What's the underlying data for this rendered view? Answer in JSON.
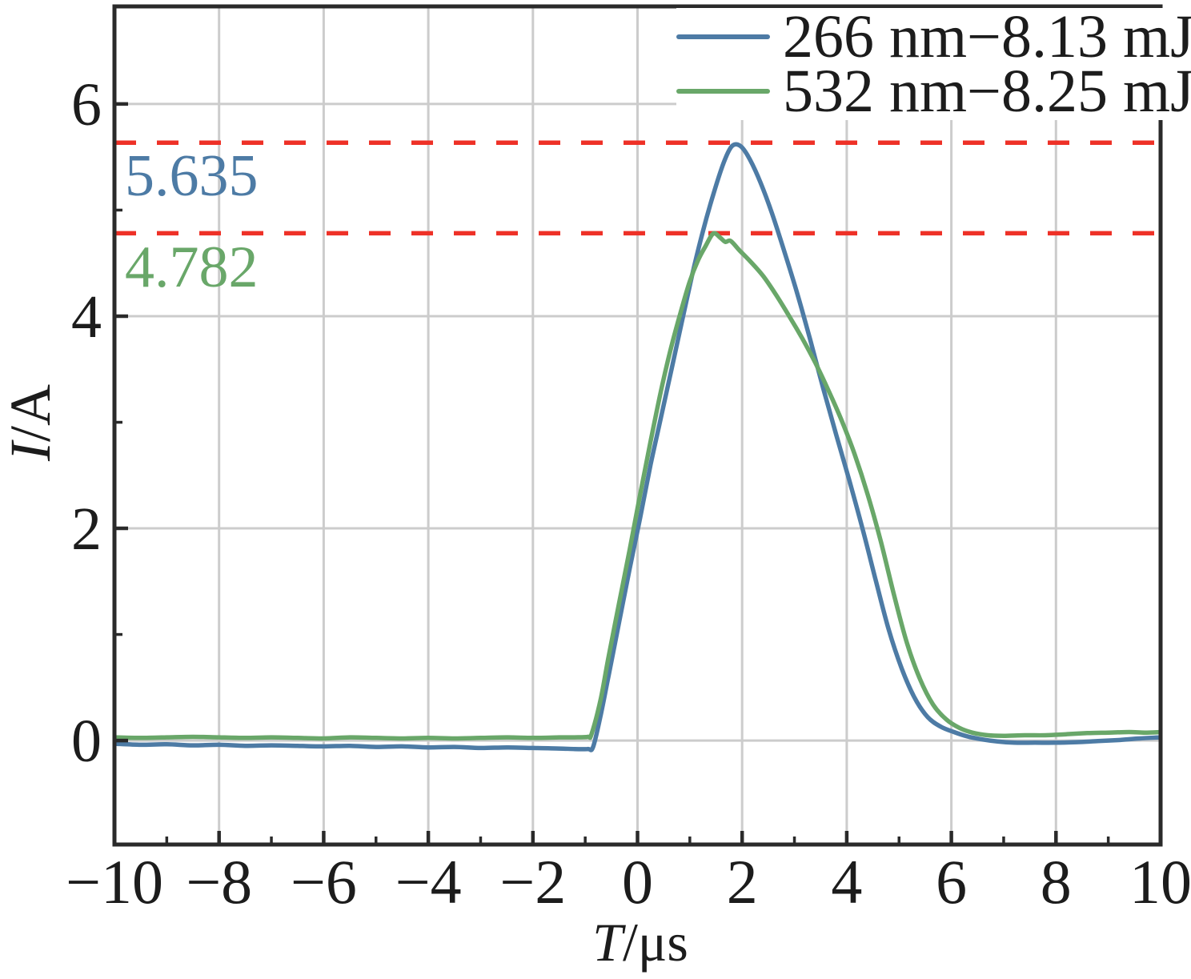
{
  "chart_data": {
    "type": "line",
    "title": "",
    "xlabel": {
      "variable": "T",
      "unit": "/μs"
    },
    "ylabel": {
      "variable": "I",
      "unit": "/A"
    },
    "xlim": [
      -10,
      10
    ],
    "ylim": [
      -0.98,
      6.92
    ],
    "x_major_ticks": [
      -10,
      -8,
      -6,
      -4,
      -2,
      0,
      2,
      4,
      6,
      8,
      10
    ],
    "x_minor_ticks": [
      -9,
      -7,
      -5,
      -3,
      -1,
      1,
      3,
      5,
      7,
      9
    ],
    "x_tick_labels": [
      "−10",
      "−8",
      "−6",
      "−4",
      "−2",
      "0",
      "2",
      "4",
      "6",
      "8",
      "10"
    ],
    "y_major_ticks": [
      0,
      2,
      4,
      6
    ],
    "y_minor_ticks": [
      1,
      3,
      5
    ],
    "y_tick_labels": [
      "0",
      "2",
      "4",
      "6"
    ],
    "grid_x_values": [
      -8,
      -6,
      -4,
      -2,
      0,
      2,
      4,
      6,
      8
    ],
    "grid_y_values": [
      0,
      2,
      4,
      6
    ],
    "grid_on": true,
    "grid_color": "#cccccc",
    "axis_color": "#2a2a2a",
    "text_color": "#1c1c1c",
    "background_color": "#ffffff",
    "legend_position": "top-right",
    "series": [
      {
        "name": "266 nm−8.13 mJ",
        "color": "#4d7ba5",
        "peak_value": 5.635,
        "points": [
          [
            -10,
            -0.03
          ],
          [
            -9.5,
            -0.04
          ],
          [
            -9,
            -0.035
          ],
          [
            -8.5,
            -0.045
          ],
          [
            -8,
            -0.04
          ],
          [
            -7.5,
            -0.05
          ],
          [
            -7,
            -0.045
          ],
          [
            -6.5,
            -0.05
          ],
          [
            -6,
            -0.055
          ],
          [
            -5.5,
            -0.05
          ],
          [
            -5,
            -0.06
          ],
          [
            -4.5,
            -0.055
          ],
          [
            -4,
            -0.065
          ],
          [
            -3.5,
            -0.06
          ],
          [
            -3,
            -0.07
          ],
          [
            -2.5,
            -0.065
          ],
          [
            -2,
            -0.07
          ],
          [
            -1.5,
            -0.075
          ],
          [
            -1.2,
            -0.08
          ],
          [
            -0.95,
            -0.08
          ],
          [
            -0.85,
            -0.06
          ],
          [
            -0.7,
            0.25
          ],
          [
            -0.55,
            0.62
          ],
          [
            -0.35,
            1.12
          ],
          [
            -0.15,
            1.62
          ],
          [
            0.05,
            2.1
          ],
          [
            0.25,
            2.6
          ],
          [
            0.45,
            3.05
          ],
          [
            0.65,
            3.5
          ],
          [
            0.85,
            3.95
          ],
          [
            1.05,
            4.4
          ],
          [
            1.25,
            4.8
          ],
          [
            1.45,
            5.15
          ],
          [
            1.65,
            5.45
          ],
          [
            1.8,
            5.6
          ],
          [
            1.95,
            5.61
          ],
          [
            2.1,
            5.52
          ],
          [
            2.3,
            5.32
          ],
          [
            2.55,
            5.0
          ],
          [
            2.8,
            4.62
          ],
          [
            3.05,
            4.22
          ],
          [
            3.3,
            3.78
          ],
          [
            3.55,
            3.32
          ],
          [
            3.8,
            2.88
          ],
          [
            4.05,
            2.45
          ],
          [
            4.3,
            2.0
          ],
          [
            4.55,
            1.52
          ],
          [
            4.8,
            1.05
          ],
          [
            5.05,
            0.68
          ],
          [
            5.3,
            0.4
          ],
          [
            5.55,
            0.22
          ],
          [
            5.8,
            0.13
          ],
          [
            6.05,
            0.08
          ],
          [
            6.3,
            0.04
          ],
          [
            6.6,
            0.01
          ],
          [
            6.9,
            -0.01
          ],
          [
            7.2,
            -0.02
          ],
          [
            7.6,
            -0.02
          ],
          [
            8,
            -0.02
          ],
          [
            8.4,
            -0.015
          ],
          [
            8.8,
            -0.005
          ],
          [
            9.2,
            0.005
          ],
          [
            9.6,
            0.02
          ],
          [
            10,
            0.03
          ]
        ]
      },
      {
        "name": "532 nm−8.25 mJ",
        "color": "#69a769",
        "peak_value": 4.782,
        "points": [
          [
            -10,
            0.03
          ],
          [
            -9.5,
            0.025
          ],
          [
            -9,
            0.03
          ],
          [
            -8.5,
            0.035
          ],
          [
            -8,
            0.03
          ],
          [
            -7.5,
            0.025
          ],
          [
            -7,
            0.03
          ],
          [
            -6.5,
            0.025
          ],
          [
            -6,
            0.02
          ],
          [
            -5.5,
            0.03
          ],
          [
            -5,
            0.025
          ],
          [
            -4.5,
            0.02
          ],
          [
            -4,
            0.025
          ],
          [
            -3.5,
            0.02
          ],
          [
            -3,
            0.025
          ],
          [
            -2.5,
            0.03
          ],
          [
            -2,
            0.025
          ],
          [
            -1.5,
            0.03
          ],
          [
            -1.2,
            0.03
          ],
          [
            -0.95,
            0.035
          ],
          [
            -0.88,
            0.06
          ],
          [
            -0.7,
            0.4
          ],
          [
            -0.55,
            0.8
          ],
          [
            -0.35,
            1.3
          ],
          [
            -0.15,
            1.8
          ],
          [
            0.05,
            2.32
          ],
          [
            0.25,
            2.82
          ],
          [
            0.45,
            3.3
          ],
          [
            0.65,
            3.72
          ],
          [
            0.85,
            4.08
          ],
          [
            1.0,
            4.33
          ],
          [
            1.15,
            4.52
          ],
          [
            1.3,
            4.66
          ],
          [
            1.45,
            4.78
          ],
          [
            1.58,
            4.74
          ],
          [
            1.68,
            4.7
          ],
          [
            1.78,
            4.71
          ],
          [
            1.95,
            4.62
          ],
          [
            2.15,
            4.52
          ],
          [
            2.4,
            4.38
          ],
          [
            2.65,
            4.2
          ],
          [
            2.9,
            4.0
          ],
          [
            3.15,
            3.79
          ],
          [
            3.4,
            3.56
          ],
          [
            3.65,
            3.3
          ],
          [
            3.9,
            3.02
          ],
          [
            4.15,
            2.7
          ],
          [
            4.4,
            2.32
          ],
          [
            4.65,
            1.88
          ],
          [
            4.9,
            1.38
          ],
          [
            5.15,
            0.92
          ],
          [
            5.4,
            0.58
          ],
          [
            5.65,
            0.34
          ],
          [
            5.9,
            0.2
          ],
          [
            6.15,
            0.12
          ],
          [
            6.4,
            0.075
          ],
          [
            6.7,
            0.05
          ],
          [
            7,
            0.045
          ],
          [
            7.4,
            0.05
          ],
          [
            7.8,
            0.05
          ],
          [
            8.2,
            0.06
          ],
          [
            8.6,
            0.07
          ],
          [
            9,
            0.075
          ],
          [
            9.4,
            0.08
          ],
          [
            9.7,
            0.075
          ],
          [
            10,
            0.08
          ]
        ]
      }
    ],
    "reference_lines": [
      {
        "value": 5.635,
        "label": "5.635",
        "color": "#ee3127",
        "label_color": "#4d7ba5"
      },
      {
        "value": 4.782,
        "label": "4.782",
        "color": "#ee3127",
        "label_color": "#69a769"
      }
    ]
  }
}
